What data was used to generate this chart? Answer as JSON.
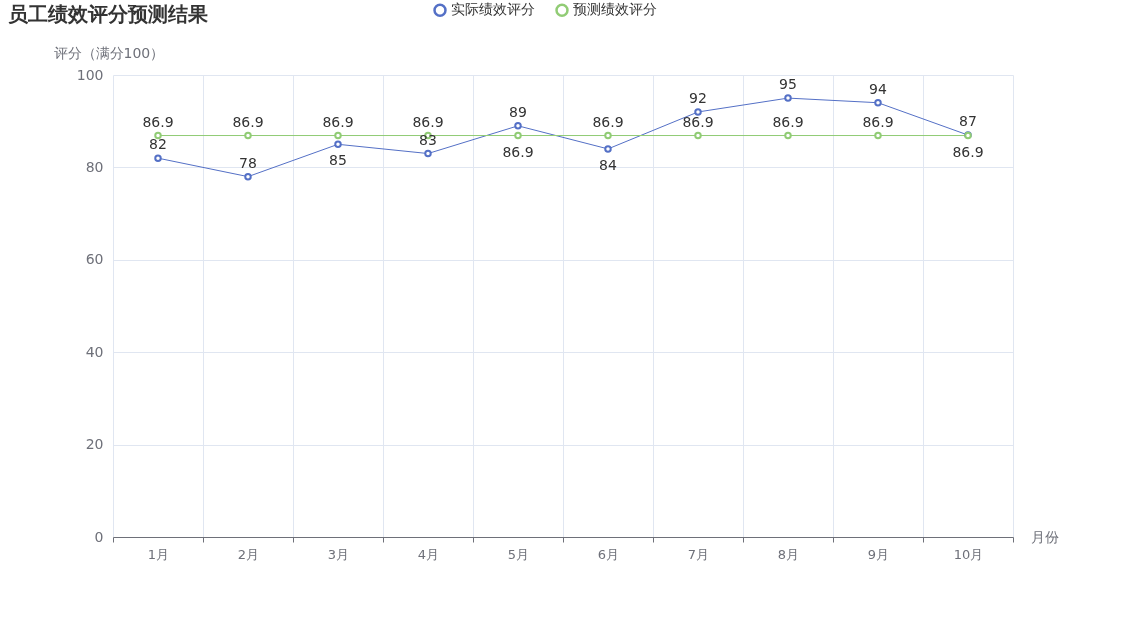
{
  "chart_data": {
    "type": "line",
    "title": "员工绩效评分预测结果",
    "xlabel": "月份",
    "ylabel": "评分（满分100）",
    "categories": [
      "1月",
      "2月",
      "3月",
      "4月",
      "5月",
      "6月",
      "7月",
      "8月",
      "9月",
      "10月"
    ],
    "series": [
      {
        "name": "实际绩效评分",
        "color": "#5470c6",
        "values": [
          82,
          78,
          85,
          83,
          89,
          84,
          92,
          95,
          94,
          87
        ]
      },
      {
        "name": "预测绩效评分",
        "color": "#91cc75",
        "values": [
          86.9,
          86.9,
          86.9,
          86.9,
          86.9,
          86.9,
          86.9,
          86.9,
          86.9,
          86.9
        ]
      }
    ],
    "ylim": [
      0,
      100
    ],
    "yticks": [
      0,
      20,
      40,
      60,
      80,
      100
    ],
    "grid": true,
    "legend": "top",
    "marker": "circle",
    "line_style": "solid",
    "data_labels": true
  }
}
